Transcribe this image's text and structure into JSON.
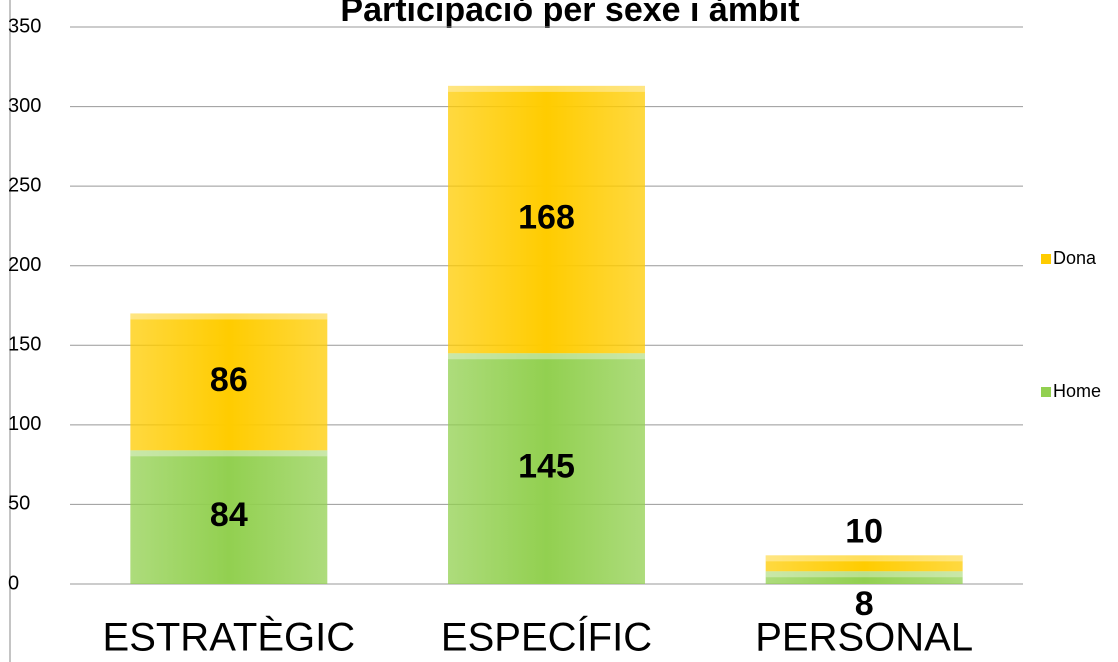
{
  "chart_data": {
    "type": "stacked-bar",
    "title": "Participació per sexe i àmbit",
    "categories": [
      "ESTRATÈGIC",
      "ESPECÍFIC",
      "PERSONAL"
    ],
    "series": [
      {
        "name": "Home",
        "color": "#92d050",
        "values": [
          84,
          145,
          8
        ]
      },
      {
        "name": "Dona",
        "color": "#ffcc00",
        "values": [
          86,
          168,
          10
        ]
      }
    ],
    "ylim": [
      0,
      350
    ],
    "yticks": [
      0,
      50,
      100,
      150,
      200,
      250,
      300,
      350
    ],
    "grid": true
  }
}
